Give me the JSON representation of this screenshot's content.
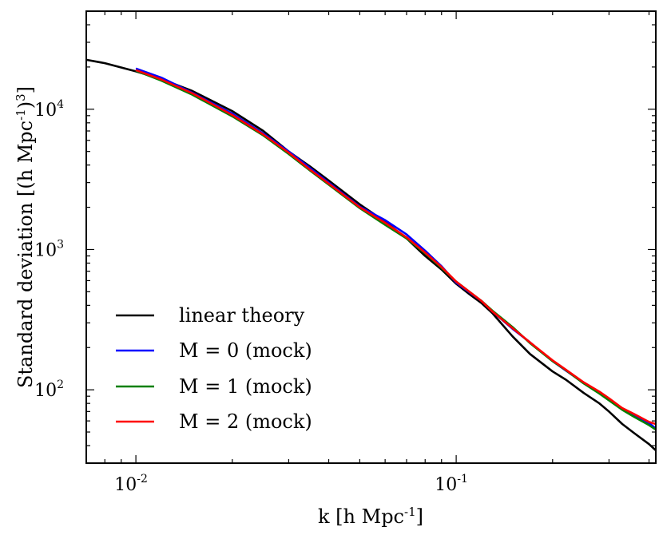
{
  "chart_data": {
    "type": "line",
    "scale": {
      "x": "log",
      "y": "log"
    },
    "xlim": [
      0.007,
      0.42
    ],
    "ylim": [
      30,
      50000
    ],
    "x_ticks": [
      {
        "base": "10",
        "exp": "-2",
        "value": 0.01
      },
      {
        "base": "10",
        "exp": "-1",
        "value": 0.1
      }
    ],
    "y_ticks": [
      {
        "base": "10",
        "exp": "2",
        "value": 100
      },
      {
        "base": "10",
        "exp": "3",
        "value": 1000
      },
      {
        "base": "10",
        "exp": "4",
        "value": 10000
      }
    ],
    "xlabel": {
      "pre": "k ",
      "open": "[",
      "unit": "h Mpc",
      "exp": "-1",
      "close": "]"
    },
    "ylabel": {
      "pre": "Standard deviation ",
      "open": "[",
      "unit": "(h Mpc",
      "exp": "-1",
      "paren": ")",
      "power": "3",
      "close": "]"
    },
    "legend_position": "lower-left",
    "series": [
      {
        "name": "linear theory",
        "color": "#000000",
        "x": [
          0.007,
          0.008,
          0.01,
          0.012,
          0.015,
          0.02,
          0.025,
          0.03,
          0.035,
          0.04,
          0.05,
          0.06,
          0.07,
          0.08,
          0.09,
          0.1,
          0.11,
          0.12,
          0.13,
          0.15,
          0.17,
          0.2,
          0.22,
          0.25,
          0.28,
          0.3,
          0.33,
          0.36,
          0.4,
          0.42
        ],
        "y": [
          22500,
          21300,
          18600,
          16400,
          13500,
          9700,
          7000,
          5000,
          3900,
          3100,
          2100,
          1580,
          1200,
          900,
          720,
          570,
          480,
          415,
          350,
          240,
          180,
          135,
          118,
          95,
          80,
          70,
          57,
          49,
          41,
          37
        ]
      },
      {
        "name": "M = 0 (mock)",
        "color": "#0000ff",
        "x": [
          0.01,
          0.012,
          0.015,
          0.02,
          0.025,
          0.03,
          0.035,
          0.04,
          0.05,
          0.06,
          0.07,
          0.08,
          0.09,
          0.1,
          0.11,
          0.12,
          0.13,
          0.15,
          0.17,
          0.2,
          0.22,
          0.25,
          0.28,
          0.3,
          0.33,
          0.36,
          0.4,
          0.42
        ],
        "y": [
          19500,
          16800,
          13100,
          9300,
          6700,
          5000,
          3800,
          3000,
          2020,
          1620,
          1280,
          980,
          760,
          580,
          495,
          430,
          360,
          272,
          218,
          160,
          137,
          112,
          96,
          86,
          73,
          66,
          58,
          53
        ]
      },
      {
        "name": "M = 1 (mock)",
        "color": "#008000",
        "x": [
          0.01,
          0.012,
          0.015,
          0.02,
          0.025,
          0.03,
          0.035,
          0.04,
          0.05,
          0.06,
          0.07,
          0.08,
          0.09,
          0.1,
          0.11,
          0.12,
          0.13,
          0.15,
          0.17,
          0.2,
          0.22,
          0.25,
          0.28,
          0.3,
          0.33,
          0.36,
          0.4,
          0.42
        ],
        "y": [
          18800,
          16000,
          12700,
          8900,
          6500,
          4800,
          3650,
          2900,
          1970,
          1500,
          1200,
          940,
          740,
          590,
          500,
          430,
          365,
          280,
          215,
          160,
          138,
          111,
          94,
          84,
          72,
          64,
          56,
          52
        ]
      },
      {
        "name": "M = 2 (mock)",
        "color": "#ff0000",
        "x": [
          0.01,
          0.012,
          0.015,
          0.02,
          0.025,
          0.03,
          0.035,
          0.04,
          0.05,
          0.06,
          0.07,
          0.08,
          0.09,
          0.1,
          0.11,
          0.12,
          0.13,
          0.15,
          0.17,
          0.2,
          0.22,
          0.25,
          0.28,
          0.3,
          0.33,
          0.36,
          0.4,
          0.42
        ],
        "y": [
          19000,
          16300,
          13000,
          9100,
          6600,
          4900,
          3700,
          2950,
          2000,
          1550,
          1220,
          950,
          750,
          590,
          500,
          430,
          360,
          275,
          218,
          162,
          139,
          113,
          97,
          87,
          74,
          67,
          59,
          57
        ]
      }
    ]
  }
}
